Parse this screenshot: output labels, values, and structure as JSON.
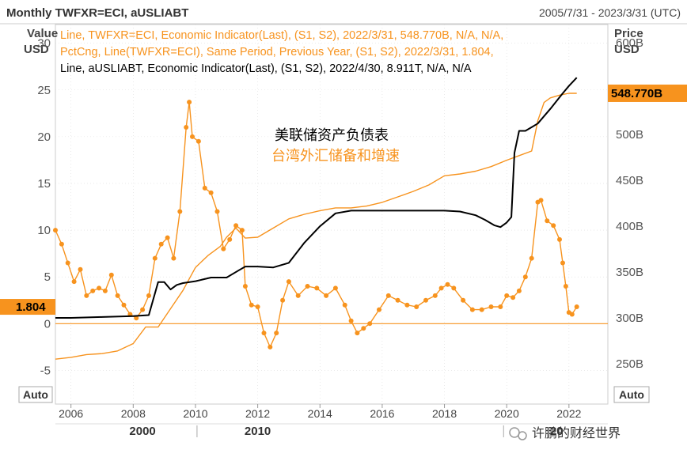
{
  "header": {
    "title": "Monthly TWFXR=ECI, aUSLIABT",
    "date_range": "2005/7/31 - 2023/3/31 (UTC)"
  },
  "axes": {
    "left_label_line1": "Value",
    "left_label_line2": "USD",
    "right_label_line1": "Price",
    "right_label_line2": "USD",
    "auto_left": "Auto",
    "auto_right": "Auto"
  },
  "legend": {
    "line1": "Line, TWFXR=ECI, Economic Indicator(Last), (S1, S2), 2022/3/31, 548.770B, N/A, N/A,",
    "line2": "PctCng, Line(TWFXR=ECI), Same Period, Previous Year, (S1, S2), 2022/3/31, 1.804,",
    "line3": "Line, aUSLIABT, Economic Indicator(Last), (S1, S2), 2022/4/30, 8.911T, N/A, N/A"
  },
  "annotations": {
    "line1": "美联储资产负债表",
    "line2": "台湾外汇储备和增速"
  },
  "badges": {
    "left_value": "1.804",
    "right_value": "548.770B"
  },
  "watermark": "许鹏的财经世界",
  "colors": {
    "orange": "#f7931e",
    "black": "#000000",
    "badge": "#f7931e",
    "grid": "#dddddd"
  },
  "chart_data": {
    "type": "line",
    "x_axis": {
      "min": 2005.5,
      "max": 2023.25,
      "ticks": [
        2006,
        2008,
        2010,
        2012,
        2014,
        2016,
        2018,
        2020,
        2022
      ],
      "tick_labels": [
        "2006",
        "2008",
        "2010",
        "2012",
        "2014",
        "2016",
        "2018",
        "2020",
        "2022"
      ],
      "major_labels": [
        {
          "x": 2008.3,
          "label": "2000"
        },
        {
          "x": 2012.0,
          "label": "2010"
        },
        {
          "x": 2021.6,
          "label": "20"
        }
      ]
    },
    "left_axis": {
      "min": -8.6,
      "max": 32,
      "ticks": [
        -5,
        0,
        5,
        10,
        15,
        20,
        25,
        30
      ],
      "tick_labels": [
        "-5",
        "0",
        "5",
        "10",
        "15",
        "20",
        "25",
        "30"
      ]
    },
    "right_axis": {
      "min": 206,
      "max": 620,
      "ticks": [
        250,
        300,
        350,
        400,
        450,
        500,
        550,
        600
      ],
      "tick_labels": [
        "250B",
        "300B",
        "350B",
        "400B",
        "450B",
        "500B",
        "550B",
        "600B"
      ]
    },
    "series": [
      {
        "name": "TWFXR=ECI",
        "axis": "right",
        "color": "#f7931e",
        "markers": false,
        "points": [
          [
            2005.5,
            255
          ],
          [
            2006,
            257
          ],
          [
            2006.5,
            260
          ],
          [
            2007,
            261
          ],
          [
            2007.5,
            264
          ],
          [
            2008,
            272
          ],
          [
            2008.4,
            290
          ],
          [
            2008.8,
            290
          ],
          [
            2009.2,
            310
          ],
          [
            2009.6,
            330
          ],
          [
            2010,
            355
          ],
          [
            2010.4,
            368
          ],
          [
            2010.8,
            378
          ],
          [
            2011.0,
            388
          ],
          [
            2011.3,
            398
          ],
          [
            2011.6,
            387
          ],
          [
            2012,
            388
          ],
          [
            2012.5,
            398
          ],
          [
            2013,
            408
          ],
          [
            2013.5,
            413
          ],
          [
            2014,
            417
          ],
          [
            2014.5,
            420
          ],
          [
            2015,
            420
          ],
          [
            2015.5,
            422
          ],
          [
            2016,
            426
          ],
          [
            2016.5,
            432
          ],
          [
            2017,
            438
          ],
          [
            2017.5,
            445
          ],
          [
            2018,
            455
          ],
          [
            2018.5,
            457
          ],
          [
            2019,
            460
          ],
          [
            2019.5,
            465
          ],
          [
            2020,
            472
          ],
          [
            2020.4,
            477
          ],
          [
            2020.8,
            482
          ],
          [
            2021.0,
            515
          ],
          [
            2021.2,
            535
          ],
          [
            2021.4,
            540
          ],
          [
            2021.7,
            543
          ],
          [
            2022,
            545
          ],
          [
            2022.25,
            545
          ]
        ]
      },
      {
        "name": "PctCng TWFXR=ECI",
        "axis": "left",
        "color": "#f7931e",
        "markers": true,
        "points": [
          [
            2005.5,
            10
          ],
          [
            2005.7,
            8.5
          ],
          [
            2005.9,
            6.5
          ],
          [
            2006.1,
            4.5
          ],
          [
            2006.3,
            5.8
          ],
          [
            2006.5,
            3
          ],
          [
            2006.7,
            3.5
          ],
          [
            2006.9,
            3.8
          ],
          [
            2007.1,
            3.5
          ],
          [
            2007.3,
            5.2
          ],
          [
            2007.5,
            3
          ],
          [
            2007.7,
            2
          ],
          [
            2007.9,
            1
          ],
          [
            2008.1,
            0.6
          ],
          [
            2008.3,
            1.5
          ],
          [
            2008.5,
            3
          ],
          [
            2008.7,
            7
          ],
          [
            2008.9,
            8.5
          ],
          [
            2009.1,
            9.2
          ],
          [
            2009.3,
            7
          ],
          [
            2009.5,
            12
          ],
          [
            2009.7,
            21
          ],
          [
            2009.8,
            23.7
          ],
          [
            2009.9,
            20
          ],
          [
            2010.1,
            19.5
          ],
          [
            2010.3,
            14.5
          ],
          [
            2010.5,
            14
          ],
          [
            2010.7,
            12
          ],
          [
            2010.9,
            8
          ],
          [
            2011.1,
            9
          ],
          [
            2011.3,
            10.5
          ],
          [
            2011.5,
            10
          ],
          [
            2011.6,
            4
          ],
          [
            2011.8,
            2
          ],
          [
            2012.0,
            1.8
          ],
          [
            2012.2,
            -1
          ],
          [
            2012.4,
            -2.5
          ],
          [
            2012.6,
            -1
          ],
          [
            2012.8,
            2.5
          ],
          [
            2013.0,
            4.5
          ],
          [
            2013.3,
            3
          ],
          [
            2013.6,
            4
          ],
          [
            2013.9,
            3.8
          ],
          [
            2014.2,
            3
          ],
          [
            2014.5,
            3.8
          ],
          [
            2014.8,
            2
          ],
          [
            2015.0,
            0.3
          ],
          [
            2015.2,
            -1
          ],
          [
            2015.4,
            -0.5
          ],
          [
            2015.6,
            0
          ],
          [
            2015.9,
            1.5
          ],
          [
            2016.2,
            3
          ],
          [
            2016.5,
            2.5
          ],
          [
            2016.8,
            2
          ],
          [
            2017.1,
            1.8
          ],
          [
            2017.4,
            2.5
          ],
          [
            2017.7,
            3
          ],
          [
            2017.9,
            3.8
          ],
          [
            2018.1,
            4.2
          ],
          [
            2018.3,
            3.8
          ],
          [
            2018.6,
            2.5
          ],
          [
            2018.9,
            1.5
          ],
          [
            2019.2,
            1.5
          ],
          [
            2019.5,
            1.8
          ],
          [
            2019.8,
            1.8
          ],
          [
            2020.0,
            3
          ],
          [
            2020.2,
            2.8
          ],
          [
            2020.4,
            3.5
          ],
          [
            2020.6,
            5
          ],
          [
            2020.8,
            7
          ],
          [
            2021.0,
            13
          ],
          [
            2021.1,
            13.2
          ],
          [
            2021.3,
            11
          ],
          [
            2021.5,
            10.5
          ],
          [
            2021.7,
            9
          ],
          [
            2021.8,
            6.5
          ],
          [
            2021.9,
            4
          ],
          [
            2022.0,
            1.2
          ],
          [
            2022.1,
            1
          ],
          [
            2022.25,
            1.8
          ]
        ]
      },
      {
        "name": "aUSLIABT",
        "axis": "right",
        "color": "#000000",
        "markers": false,
        "points": [
          [
            2005.5,
            300
          ],
          [
            2006,
            300
          ],
          [
            2007,
            301
          ],
          [
            2008,
            302
          ],
          [
            2008.5,
            303
          ],
          [
            2008.8,
            339
          ],
          [
            2009.0,
            339
          ],
          [
            2009.2,
            331
          ],
          [
            2009.4,
            336
          ],
          [
            2009.6,
            338
          ],
          [
            2010,
            340
          ],
          [
            2010.5,
            344
          ],
          [
            2011.0,
            344
          ],
          [
            2011.4,
            352
          ],
          [
            2011.6,
            356
          ],
          [
            2012,
            356
          ],
          [
            2012.5,
            355
          ],
          [
            2013.0,
            360
          ],
          [
            2013.5,
            382
          ],
          [
            2014,
            400
          ],
          [
            2014.5,
            414
          ],
          [
            2015,
            417
          ],
          [
            2015.5,
            417
          ],
          [
            2016,
            417
          ],
          [
            2017,
            417
          ],
          [
            2018,
            417
          ],
          [
            2018.5,
            416
          ],
          [
            2019,
            412
          ],
          [
            2019.3,
            407
          ],
          [
            2019.6,
            401
          ],
          [
            2019.8,
            399
          ],
          [
            2020.0,
            404
          ],
          [
            2020.15,
            410
          ],
          [
            2020.25,
            480
          ],
          [
            2020.4,
            504
          ],
          [
            2020.6,
            504
          ],
          [
            2020.8,
            508
          ],
          [
            2021,
            512
          ],
          [
            2021.4,
            528
          ],
          [
            2021.8,
            545
          ],
          [
            2022.0,
            553
          ],
          [
            2022.25,
            562
          ]
        ]
      }
    ]
  }
}
